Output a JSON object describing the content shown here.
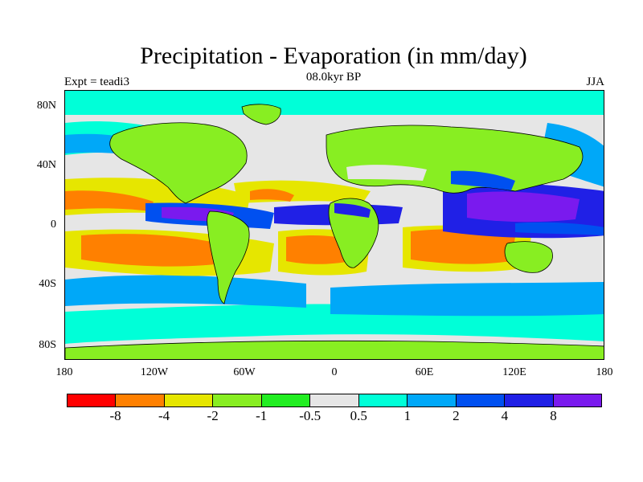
{
  "title": "Precipitation - Evaporation (in mm/day)",
  "subtitle": "08.0kyr BP",
  "left_label": "Expt = teadi3",
  "right_label": "JJA",
  "lat_labels": [
    "80N",
    "40N",
    "0",
    "40S",
    "80S"
  ],
  "lon_labels": [
    "180",
    "120W",
    "60W",
    "0",
    "60E",
    "120E",
    "180"
  ],
  "colorbar": {
    "colors": [
      "#ff0000",
      "#ff8000",
      "#e6e600",
      "#88ee22",
      "#22ee22",
      "#e6e6e6",
      "#00ffd8",
      "#00a8f8",
      "#0050f0",
      "#2020e6",
      "#7a1aee"
    ],
    "labels": [
      "-8",
      "-4",
      "-2",
      "-1",
      "-0.5",
      "0.5",
      "1",
      "2",
      "4",
      "8"
    ]
  }
}
